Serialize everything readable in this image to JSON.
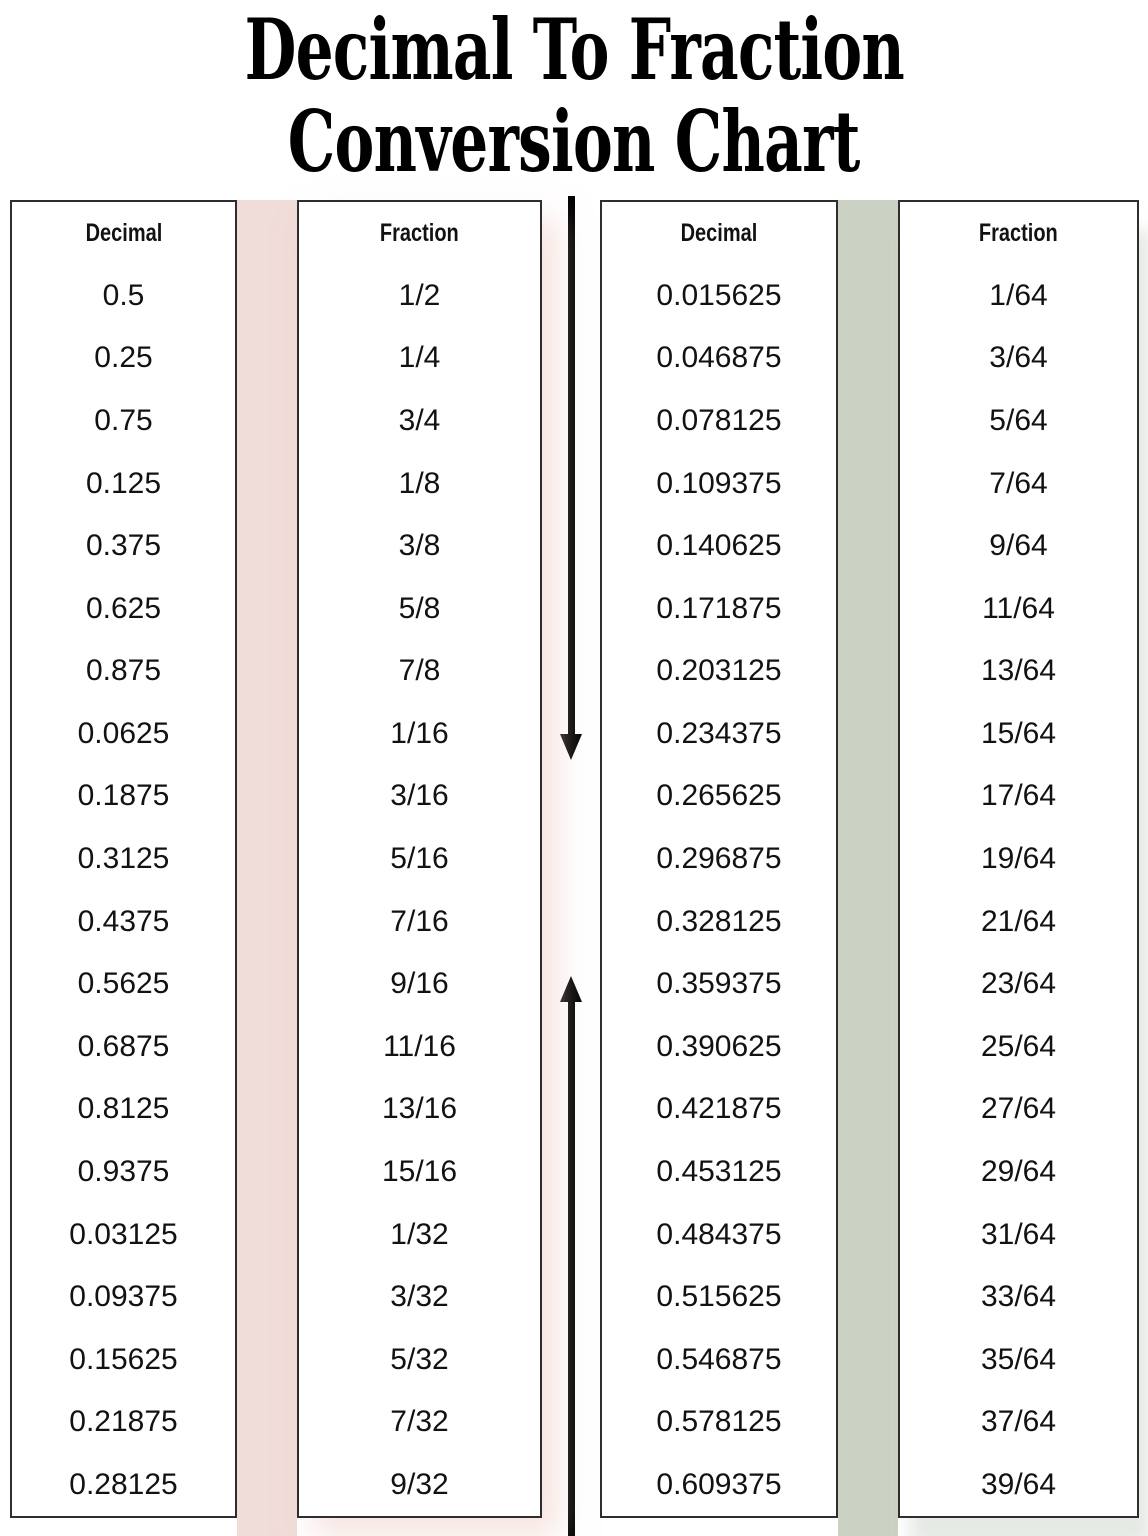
{
  "title": {
    "line1": "Decimal To Fraction",
    "line2": "Conversion Chart"
  },
  "chart_data": {
    "type": "table",
    "title": "Decimal To Fraction Conversion Chart",
    "tables": [
      {
        "columns": [
          "Decimal",
          "Fraction"
        ],
        "rows": [
          [
            "0.5",
            "1/2"
          ],
          [
            "0.25",
            "1/4"
          ],
          [
            "0.75",
            "3/4"
          ],
          [
            "0.125",
            "1/8"
          ],
          [
            "0.375",
            "3/8"
          ],
          [
            "0.625",
            "5/8"
          ],
          [
            "0.875",
            "7/8"
          ],
          [
            "0.0625",
            "1/16"
          ],
          [
            "0.1875",
            "3/16"
          ],
          [
            "0.3125",
            "5/16"
          ],
          [
            "0.4375",
            "7/16"
          ],
          [
            "0.5625",
            "9/16"
          ],
          [
            "0.6875",
            "11/16"
          ],
          [
            "0.8125",
            "13/16"
          ],
          [
            "0.9375",
            "15/16"
          ],
          [
            "0.03125",
            "1/32"
          ],
          [
            "0.09375",
            "3/32"
          ],
          [
            "0.15625",
            "5/32"
          ],
          [
            "0.21875",
            "7/32"
          ],
          [
            "0.28125",
            "9/32"
          ]
        ]
      },
      {
        "columns": [
          "Decimal",
          "Fraction"
        ],
        "rows": [
          [
            "0.015625",
            "1/64"
          ],
          [
            "0.046875",
            "3/64"
          ],
          [
            "0.078125",
            "5/64"
          ],
          [
            "0.109375",
            "7/64"
          ],
          [
            "0.140625",
            "9/64"
          ],
          [
            "0.171875",
            "11/64"
          ],
          [
            "0.203125",
            "13/64"
          ],
          [
            "0.234375",
            "15/64"
          ],
          [
            "0.265625",
            "17/64"
          ],
          [
            "0.296875",
            "19/64"
          ],
          [
            "0.328125",
            "21/64"
          ],
          [
            "0.359375",
            "23/64"
          ],
          [
            "0.390625",
            "25/64"
          ],
          [
            "0.421875",
            "27/64"
          ],
          [
            "0.453125",
            "29/64"
          ],
          [
            "0.484375",
            "31/64"
          ],
          [
            "0.515625",
            "33/64"
          ],
          [
            "0.546875",
            "35/64"
          ],
          [
            "0.578125",
            "37/64"
          ],
          [
            "0.609375",
            "39/64"
          ]
        ]
      }
    ],
    "layout": {
      "grid": "off",
      "legend": "none"
    }
  },
  "icons": {
    "down_arrow": "solid-black-downward-arrow",
    "up_arrow": "solid-black-upward-arrow"
  },
  "colors": {
    "pink_stripe": "#f0dcd8",
    "green_stripe": "#cbd2c3",
    "border": "#2e2e2e",
    "arrow": "#000000",
    "text": "#121212",
    "title": "#000000"
  }
}
